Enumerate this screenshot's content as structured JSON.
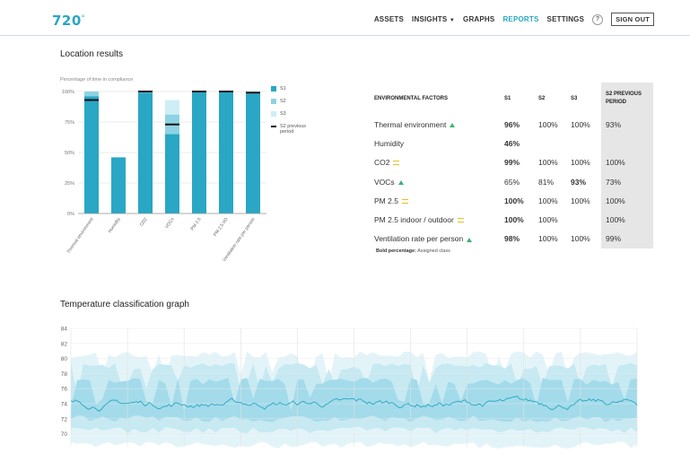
{
  "app": {
    "logo": "720",
    "logo_sup": "°"
  },
  "nav": {
    "assets": "ASSETS",
    "insights": "INSIGHTS",
    "graphs": "GRAPHS",
    "reports": "REPORTS",
    "settings": "SETTINGS",
    "help": "?",
    "signout": "SIGN OUT",
    "active_color": "#29a7c4"
  },
  "location": {
    "title": "Location results",
    "chart_data": {
      "type": "bar",
      "ylabel": "Percentage of time in compliance",
      "ylim": [
        0,
        100
      ],
      "yticks": [
        "0%",
        "25%",
        "50%",
        "75%",
        "100%"
      ],
      "grid": true,
      "categories": [
        "Thermal environment",
        "Humidity",
        "CO2",
        "VOCs",
        "PM 2.5",
        "PM 2.5 I/O",
        "Ventilation rate per person"
      ],
      "series": [
        {
          "name": "S1",
          "color": "#29a7c4",
          "values": [
            96,
            46,
            99,
            65,
            100,
            100,
            98
          ]
        },
        {
          "name": "S2",
          "color": "#8dd3e3",
          "values": [
            100,
            46,
            100,
            81,
            100,
            100,
            100
          ]
        },
        {
          "name": "S3",
          "color": "#cdeef6",
          "values": [
            100,
            46,
            100,
            93,
            100,
            100,
            100
          ]
        },
        {
          "name": "S2 previous period",
          "color": "#111111",
          "values": [
            93,
            null,
            100,
            73,
            100,
            100,
            99
          ]
        }
      ],
      "legend_position": "right"
    }
  },
  "env_table": {
    "headers": [
      "ENVIRONMENTAL FACTORS",
      "S1",
      "S2",
      "S3",
      "S2 PREVIOUS PERIOD"
    ],
    "rows": [
      {
        "factor": "Thermal environment",
        "trend": "up",
        "s1": "96%",
        "s2": "100%",
        "s3": "100%",
        "prev": "93%",
        "bold": "s1"
      },
      {
        "factor": "Humidity",
        "trend": "",
        "s1": "46%",
        "s2": "",
        "s3": "",
        "prev": "",
        "bold": "s1"
      },
      {
        "factor": "CO2",
        "trend": "equal",
        "s1": "99%",
        "s2": "100%",
        "s3": "100%",
        "prev": "100%",
        "bold": "s1"
      },
      {
        "factor": "VOCs",
        "trend": "up",
        "s1": "65%",
        "s2": "81%",
        "s3": "93%",
        "prev": "73%",
        "bold": "s3"
      },
      {
        "factor": "PM 2.5",
        "trend": "equal",
        "s1": "100%",
        "s2": "100%",
        "s3": "100%",
        "prev": "100%",
        "bold": "s1"
      },
      {
        "factor": "PM 2.5 indoor / outdoor",
        "trend": "equal",
        "s1": "100%",
        "s2": "100%",
        "s3": "",
        "prev": "100%",
        "bold": "s1"
      },
      {
        "factor": "Ventilation rate per person",
        "trend": "up",
        "s1": "98%",
        "s2": "100%",
        "s3": "100%",
        "prev": "99%",
        "bold": "s1"
      }
    ],
    "note_label": "Bold percentage:",
    "note_text": "Assigned class",
    "trend_up_color": "#3cb371",
    "trend_equal_color": "#e6c21a"
  },
  "temperature": {
    "title": "Temperature classification graph",
    "chart_data": {
      "type": "area",
      "ylim": [
        69,
        84
      ],
      "yticks": [
        70,
        72,
        74,
        76,
        78,
        80,
        82,
        84
      ],
      "grid": true,
      "bands": [
        {
          "lo": 68.5,
          "hi": 80.5,
          "color": "#e3f4f9"
        },
        {
          "lo": 70.5,
          "hi": 79.0,
          "color": "#c6e9f2"
        },
        {
          "lo": 72.0,
          "hi": 77.0,
          "color": "#a3dbea"
        }
      ],
      "series_color": "#29a7c4",
      "line_start": 74.2,
      "line_end": 73.8
    }
  }
}
